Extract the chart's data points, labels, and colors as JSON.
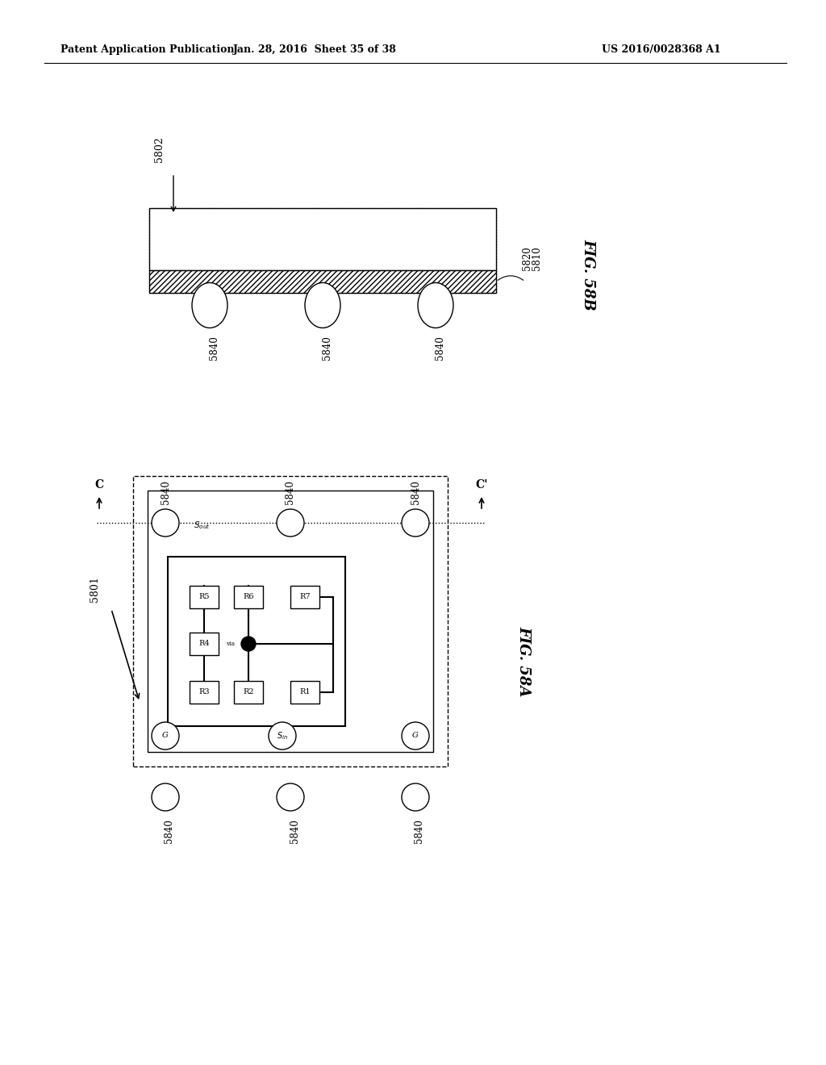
{
  "bg_color": "#ffffff",
  "header_left": "Patent Application Publication",
  "header_mid": "Jan. 28, 2016  Sheet 35 of 38",
  "header_right": "US 2016/0028368 A1",
  "fig_b_label": "FIG. 58B",
  "fig_a_label": "FIG. 58A",
  "label_5802": "5802",
  "label_5810": "5810",
  "label_5820": "5820",
  "label_5840": "5840",
  "label_5801": "5801",
  "text_color": "#000000",
  "line_color": "#000000"
}
